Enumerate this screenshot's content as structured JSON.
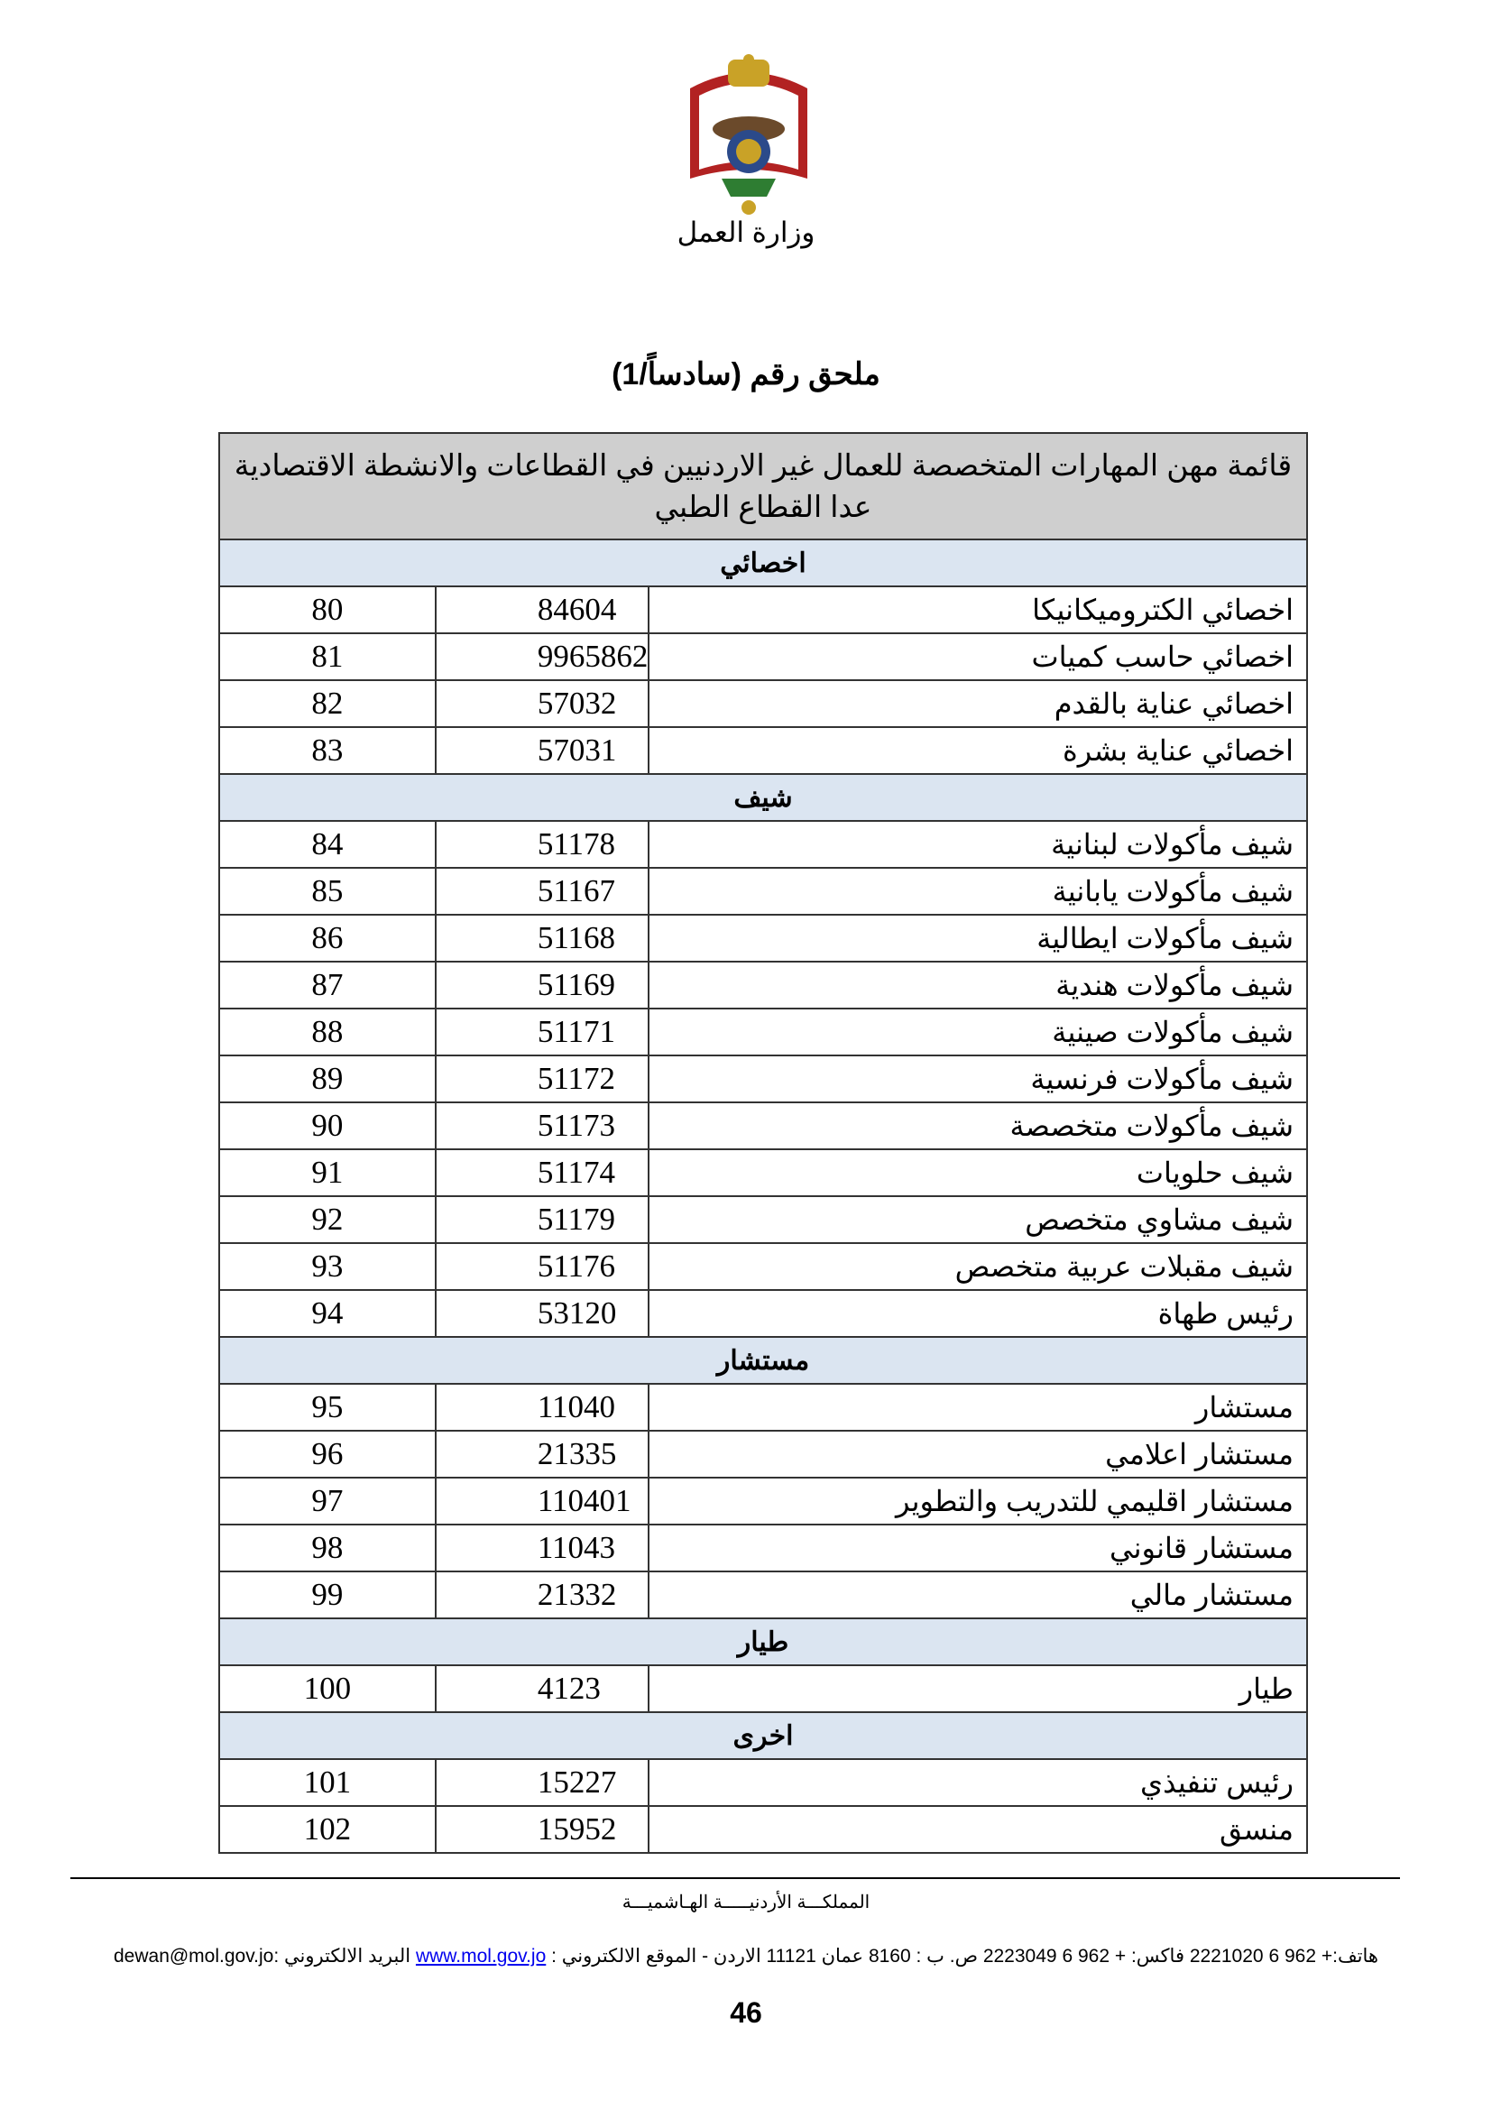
{
  "header": {
    "ministry": "وزارة العمل",
    "annex_title": "ملحق رقم (سادساً/1)"
  },
  "table": {
    "title": "قائمة مهن المهارات المتخصصة للعمال غير الاردنيين في القطاعات والانشطة الاقتصادية عدا القطاع الطبي",
    "sections": [
      {
        "name": "اخصائي",
        "rows": [
          {
            "name": "اخصائي الكتروميكانيكا",
            "code": "84604",
            "num": "80"
          },
          {
            "name": "اخصائي حاسب كميات",
            "code": "9965862",
            "num": "81"
          },
          {
            "name": "اخصائي عناية بالقدم",
            "code": "57032",
            "num": "82"
          },
          {
            "name": "اخصائي عناية بشرة",
            "code": "57031",
            "num": "83"
          }
        ]
      },
      {
        "name": "شيف",
        "rows": [
          {
            "name": "شيف مأكولات لبنانية",
            "code": "51178",
            "num": "84"
          },
          {
            "name": "شيف مأكولات يابانية",
            "code": "51167",
            "num": "85"
          },
          {
            "name": "شيف مأكولات ايطالية",
            "code": "51168",
            "num": "86"
          },
          {
            "name": "شيف مأكولات هندية",
            "code": "51169",
            "num": "87"
          },
          {
            "name": "شيف مأكولات صينية",
            "code": "51171",
            "num": "88"
          },
          {
            "name": "شيف مأكولات فرنسية",
            "code": "51172",
            "num": "89"
          },
          {
            "name": "شيف مأكولات متخصصة",
            "code": "51173",
            "num": "90"
          },
          {
            "name": "شيف حلويات",
            "code": "51174",
            "num": "91"
          },
          {
            "name": "شيف مشاوي متخصص",
            "code": "51179",
            "num": "92"
          },
          {
            "name": "شيف مقبلات عربية متخصص",
            "code": "51176",
            "num": "93"
          },
          {
            "name": "رئيس طهاة",
            "code": "53120",
            "num": "94"
          }
        ]
      },
      {
        "name": "مستشار",
        "rows": [
          {
            "name": "مستشار",
            "code": "11040",
            "num": "95"
          },
          {
            "name": "مستشار اعلامي",
            "code": "21335",
            "num": "96"
          },
          {
            "name": "مستشار اقليمي للتدريب والتطوير",
            "code": "110401",
            "num": "97"
          },
          {
            "name": "مستشار قانوني",
            "code": "11043",
            "num": "98"
          },
          {
            "name": "مستشار مالي",
            "code": "21332",
            "num": "99"
          }
        ]
      },
      {
        "name": "طيار",
        "rows": [
          {
            "name": "طيار",
            "code": "4123",
            "num": "100"
          }
        ]
      },
      {
        "name": "اخرى",
        "rows": [
          {
            "name": "رئيس تنفيذي",
            "code": "15227",
            "num": "101"
          },
          {
            "name": "منسق",
            "code": "15952",
            "num": "102"
          }
        ]
      }
    ]
  },
  "footer": {
    "kingdom": "المملكـــة الأردنيـــــة الهـاشميـــة",
    "contact_prefix": "هاتف:+ 962 6 2221020   فاكس: + 962 6 2223049 ص. ب : 8160 عمان 11121 الاردن - الموقع الالكتروني : ",
    "website": "www.mol.gov.jo",
    "contact_suffix": " البريد الالكتروني :dewan@mol.gov.jo",
    "page_number": "46"
  },
  "colors": {
    "header_bg": "#cfcfcf",
    "section_bg": "#dbe5f1",
    "link": "#0000ee"
  }
}
